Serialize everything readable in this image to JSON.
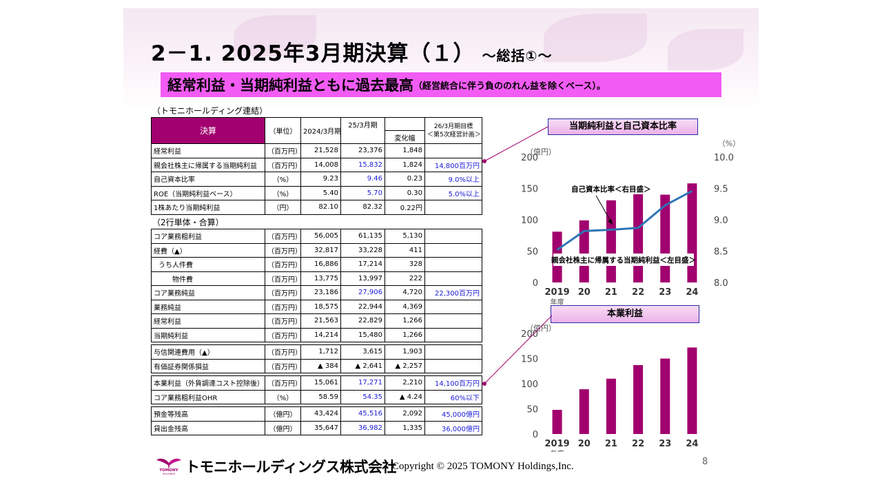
{
  "title": "2－1. 2025年3月期決算（１）",
  "title_sub": "～総括①～",
  "headline": "経常利益・当期純利益ともに過去最高",
  "headline_note": "（経営統合に伴う負ののれん益を除くベース）。",
  "consolidated": {
    "label": "（トモニホールディング連結）",
    "headers": {
      "item": "決算",
      "unit": "（単位）",
      "fy2024": "2024/3月期",
      "fy2025": "25/3月期",
      "change": "変化幅",
      "target_line1": "26/3月期目標",
      "target_line2": "＜第5次経営計画＞"
    },
    "rows": [
      {
        "item": "経常利益",
        "unit": "（百万円）",
        "fy2024": "21,528",
        "fy2025": "23,376",
        "change": "1,848",
        "target": ""
      },
      {
        "item": "親会社株主に帰属する当期純利益",
        "unit": "（百万円）",
        "fy2024": "14,008",
        "fy2025": "15,832",
        "change": "1,824",
        "target": "14,800百万円"
      },
      {
        "item": "自己資本比率",
        "unit": "（%）",
        "fy2024": "9.23",
        "fy2025": "9.46",
        "change": "0.23",
        "target": "9.0%以上"
      },
      {
        "item": "ROE（当期純利益ベース）",
        "unit": "（%）",
        "fy2024": "5.40",
        "fy2025": "5.70",
        "change": "0.30",
        "target": "5.0%以上"
      },
      {
        "item": "1株あたり当期純利益",
        "unit": "（円）",
        "fy2024": "82.10",
        "fy2025": "82.32",
        "change": "0.22円",
        "target": ""
      }
    ]
  },
  "banks": {
    "label": "（2行単体・合算）",
    "rows": [
      {
        "item": "コア業務粗利益",
        "unit": "（百万円）",
        "fy2024": "56,005",
        "fy2025": "61,135",
        "change": "5,130",
        "target": ""
      },
      {
        "item": "経費（▲）",
        "unit": "（百万円）",
        "fy2024": "32,817",
        "fy2025": "33,228",
        "change": "411",
        "target": ""
      },
      {
        "item": "うち人件費",
        "unit": "（百万円）",
        "fy2024": "16,886",
        "fy2025": "17,214",
        "change": "328",
        "target": ""
      },
      {
        "item": "物件費",
        "unit": "（百万円）",
        "fy2024": "13,775",
        "fy2025": "13,997",
        "change": "222",
        "target": ""
      },
      {
        "item": "コア業務純益",
        "unit": "（百万円）",
        "fy2024": "23,186",
        "fy2025": "27,906",
        "change": "4,720",
        "target": "22,300百万円"
      },
      {
        "item": "業務純益",
        "unit": "（百万円）",
        "fy2024": "18,575",
        "fy2025": "22,944",
        "change": "4,369",
        "target": ""
      },
      {
        "item": "経常利益",
        "unit": "（百万円）",
        "fy2024": "21,563",
        "fy2025": "22,829",
        "change": "1,266",
        "target": ""
      },
      {
        "item": "当期純利益",
        "unit": "（百万円）",
        "fy2024": "14,214",
        "fy2025": "15,480",
        "change": "1,266",
        "target": ""
      },
      {
        "item": "与信関連費用（▲）",
        "unit": "（百万円）",
        "fy2024": "1,712",
        "fy2025": "3,615",
        "change": "1,903",
        "target": ""
      },
      {
        "item": "有価証券関係損益",
        "unit": "（百万円）",
        "fy2024": "▲ 384",
        "fy2025": "▲ 2,641",
        "change": "▲ 2,257",
        "target": ""
      },
      {
        "item": "本業利益（外貨調達コスト控除後）",
        "unit": "（百万円）",
        "fy2024": "15,061",
        "fy2025": "17,271",
        "change": "2,210",
        "target": "14,100百万円"
      },
      {
        "item": "コア業務粗利益OHR",
        "unit": "（%）",
        "fy2024": "58.59",
        "fy2025": "54.35",
        "change": "▲ 4.24",
        "target": "60%以下"
      },
      {
        "item": "預金等残高",
        "unit": "（億円）",
        "fy2024": "43,424",
        "fy2025": "45,516",
        "change": "2,092",
        "target": "45,000億円"
      },
      {
        "item": "貸出金残高",
        "unit": "（億円）",
        "fy2024": "35,647",
        "fy2025": "36,982",
        "change": "1,335",
        "target": "36,000億円"
      }
    ]
  },
  "chart_data": [
    {
      "type": "bar",
      "title": "当期純利益と自己資本比率",
      "categories": [
        "2019",
        "20",
        "21",
        "22",
        "23",
        "24"
      ],
      "xlabel": "年度",
      "ylabel": "（億円）",
      "ylim": [
        0,
        200
      ],
      "yticks": [
        "0",
        "50",
        "100",
        "150",
        "200"
      ],
      "y2label": "（%）",
      "y2lim": [
        8.0,
        10.0
      ],
      "y2ticks": [
        "8.0",
        "8.5",
        "9.0",
        "9.5",
        "10.0"
      ],
      "series": [
        {
          "name": "親会社株主に帰属する当期純利益＜左目盛＞",
          "type": "bar",
          "axis": "left",
          "color": "#a1006e",
          "values": [
            81,
            99,
            131,
            142,
            140,
            158
          ]
        },
        {
          "name": "自己資本比率＜右目盛＞",
          "type": "line",
          "axis": "right",
          "color": "#2e74b5",
          "values": [
            8.52,
            8.82,
            8.84,
            8.87,
            9.23,
            9.46
          ]
        }
      ],
      "grid": false
    },
    {
      "type": "bar",
      "title": "本業利益",
      "categories": [
        "2019",
        "20",
        "21",
        "22",
        "23",
        "24"
      ],
      "xlabel": "年度",
      "ylabel": "（億円）",
      "ylim": [
        0,
        200
      ],
      "yticks": [
        "0",
        "50",
        "100",
        "150",
        "200"
      ],
      "series": [
        {
          "type": "bar",
          "color": "#a1006e",
          "values": [
            48,
            89,
            110,
            137,
            150,
            172
          ]
        }
      ],
      "grid": false
    }
  ],
  "footer": {
    "logo_text": "TOMONY",
    "logo_sub": "HOLDINGS",
    "company": "トモニホールディングス株式会社",
    "copyright": "Copyright © 2025 TOMONY Holdings,Inc.",
    "page": "8"
  },
  "colors": {
    "accent": "#a1006e",
    "headline": "#f25cf4",
    "target_text": "#1a1ad6",
    "line": "#2e74b5"
  }
}
